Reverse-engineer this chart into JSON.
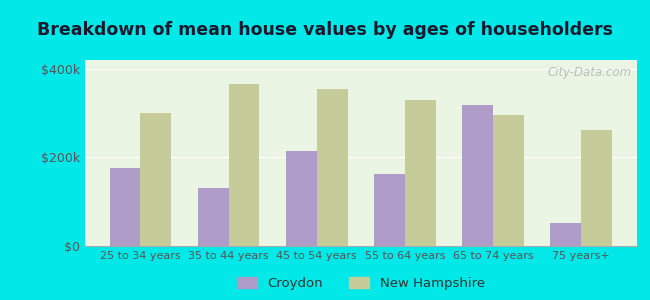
{
  "categories": [
    "25 to 34 years",
    "35 to 44 years",
    "45 to 54 years",
    "55 to 64 years",
    "65 to 74 years",
    "75 years+"
  ],
  "croydon": [
    177000,
    130000,
    215000,
    162000,
    318000,
    52000
  ],
  "new_hampshire": [
    300000,
    365000,
    355000,
    330000,
    295000,
    262000
  ],
  "croydon_color": "#b09cc8",
  "nh_color": "#c5cc99",
  "title": "Breakdown of mean house values by ages of householders",
  "title_fontsize": 12.5,
  "ylabel_ticks": [
    "$0",
    "$200k",
    "$400k"
  ],
  "yticks": [
    0,
    200000,
    400000
  ],
  "ylim": [
    0,
    420000
  ],
  "background_color": "#eaf5e4",
  "outer_background": "#00e8e8",
  "legend_croydon": "Croydon",
  "legend_nh": "New Hampshire",
  "bar_width": 0.35,
  "watermark": "City-Data.com"
}
